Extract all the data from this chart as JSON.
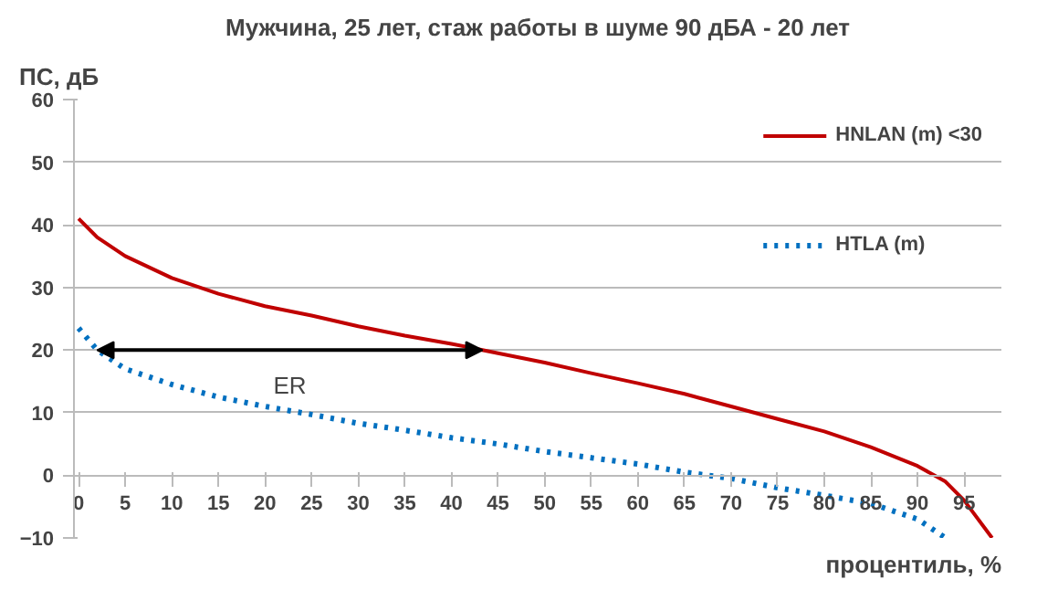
{
  "chart_data": {
    "type": "line",
    "title": "Мужчина, 25 лет, стаж работы в шуме 90 дБА - 20 лет",
    "xlabel": "процентиль, %",
    "ylabel": "ПС, дБ",
    "x": [
      0,
      2,
      5,
      10,
      15,
      20,
      25,
      30,
      35,
      40,
      45,
      50,
      55,
      60,
      65,
      70,
      75,
      80,
      85,
      90,
      93,
      95,
      98
    ],
    "series": [
      {
        "name": "HNLAN (m) <30",
        "color": "#c00000",
        "line_style": "solid",
        "values": [
          41,
          38,
          35,
          31.5,
          29,
          27,
          25.5,
          23.8,
          22.3,
          21,
          19.5,
          18,
          16.3,
          14.7,
          13,
          11,
          9,
          7,
          4.5,
          1.5,
          -1,
          -4,
          -10
        ]
      },
      {
        "name": "HTLA (m)",
        "color": "#0070c0",
        "line_style": "dotted",
        "x": [
          0,
          2,
          5,
          10,
          15,
          20,
          25,
          30,
          35,
          40,
          45,
          50,
          55,
          60,
          65,
          70,
          75,
          80,
          85,
          90,
          93
        ],
        "values": [
          23.5,
          20,
          17,
          14.5,
          12.5,
          11,
          9.7,
          8.3,
          7.2,
          6,
          5,
          3.8,
          2.8,
          1.8,
          0.5,
          -0.5,
          -2,
          -3.2,
          -4.5,
          -7,
          -10
        ]
      }
    ],
    "annotations": [
      "ER"
    ],
    "xlim": [
      -0.5,
      99
    ],
    "ylim": [
      -10,
      60
    ],
    "xticks": [
      0,
      5,
      10,
      15,
      20,
      25,
      30,
      35,
      40,
      45,
      50,
      55,
      60,
      65,
      70,
      75,
      80,
      85,
      90,
      95
    ],
    "yticks": [
      -10,
      0,
      10,
      20,
      30,
      40,
      50,
      60
    ],
    "grid": "y",
    "legend": "top right",
    "marker": "none"
  }
}
